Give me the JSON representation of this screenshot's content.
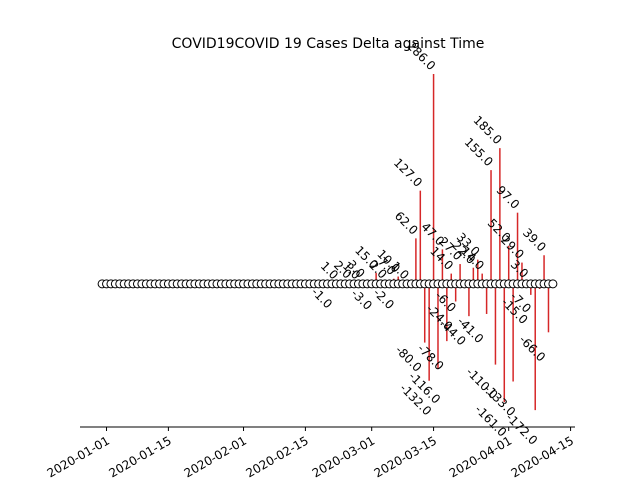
{
  "chart_data": {
    "type": "timeline",
    "title": "COVID19COVID 19 Cases Delta against Time",
    "x": [
      "2019-12-31",
      "2020-01-01",
      "2020-01-02",
      "2020-01-03",
      "2020-01-04",
      "2020-01-05",
      "2020-01-06",
      "2020-01-07",
      "2020-01-08",
      "2020-01-09",
      "2020-01-10",
      "2020-01-11",
      "2020-01-12",
      "2020-01-13",
      "2020-01-14",
      "2020-01-15",
      "2020-01-16",
      "2020-01-17",
      "2020-01-18",
      "2020-01-19",
      "2020-01-20",
      "2020-01-21",
      "2020-01-22",
      "2020-01-23",
      "2020-01-24",
      "2020-01-25",
      "2020-01-26",
      "2020-01-27",
      "2020-01-28",
      "2020-01-29",
      "2020-01-30",
      "2020-01-31",
      "2020-02-01",
      "2020-02-02",
      "2020-02-03",
      "2020-02-04",
      "2020-02-05",
      "2020-02-06",
      "2020-02-07",
      "2020-02-08",
      "2020-02-09",
      "2020-02-10",
      "2020-02-11",
      "2020-02-12",
      "2020-02-13",
      "2020-02-14",
      "2020-02-15",
      "2020-02-16",
      "2020-02-17",
      "2020-02-18",
      "2020-02-19",
      "2020-02-20",
      "2020-02-21",
      "2020-02-22",
      "2020-02-23",
      "2020-02-24",
      "2020-02-25",
      "2020-02-26",
      "2020-02-27",
      "2020-02-28",
      "2020-02-29",
      "2020-03-01",
      "2020-03-02",
      "2020-03-03",
      "2020-03-04",
      "2020-03-05",
      "2020-03-06",
      "2020-03-07",
      "2020-03-08",
      "2020-03-09",
      "2020-03-10",
      "2020-03-11",
      "2020-03-12",
      "2020-03-13",
      "2020-03-14",
      "2020-03-15",
      "2020-03-16",
      "2020-03-17",
      "2020-03-18",
      "2020-03-19",
      "2020-03-20",
      "2020-03-21",
      "2020-03-22",
      "2020-03-23",
      "2020-03-24",
      "2020-03-25",
      "2020-03-26",
      "2020-03-27",
      "2020-03-28",
      "2020-03-29",
      "2020-03-30",
      "2020-03-31",
      "2020-04-01",
      "2020-04-02",
      "2020-04-03",
      "2020-04-04",
      "2020-04-05",
      "2020-04-06",
      "2020-04-07",
      "2020-04-08",
      "2020-04-09",
      "2020-04-10",
      "2020-04-11"
    ],
    "values": [
      0,
      0,
      0,
      0,
      0,
      0,
      0,
      0,
      0,
      0,
      0,
      0,
      0,
      0,
      0,
      0,
      0,
      0,
      0,
      0,
      0,
      0,
      0,
      0,
      0,
      0,
      0,
      0,
      0,
      0,
      0,
      0,
      0,
      0,
      0,
      0,
      0,
      0,
      0,
      0,
      0,
      0,
      0,
      0,
      0,
      0,
      0,
      0,
      0,
      0,
      0,
      0,
      0,
      1,
      -1,
      0,
      2,
      0,
      1,
      3,
      0,
      0,
      15,
      -3,
      2,
      0,
      7,
      10,
      -2,
      1,
      0,
      62,
      127,
      -80,
      -132,
      286,
      -116,
      47,
      -78,
      14,
      -24,
      27,
      -6,
      -44,
      22,
      33,
      14,
      -41,
      155,
      -110,
      185,
      -161,
      52,
      -133,
      97,
      29,
      3,
      -15,
      -172,
      -7,
      39,
      -66,
      0
    ],
    "value_labels": [
      null,
      null,
      null,
      null,
      null,
      null,
      null,
      null,
      null,
      null,
      null,
      null,
      null,
      null,
      null,
      null,
      null,
      null,
      null,
      null,
      null,
      null,
      null,
      null,
      null,
      null,
      null,
      null,
      null,
      null,
      null,
      null,
      null,
      null,
      null,
      null,
      null,
      null,
      null,
      null,
      null,
      null,
      null,
      null,
      null,
      null,
      null,
      null,
      null,
      null,
      null,
      null,
      null,
      "1.0",
      "-1.0",
      null,
      "2.0",
      null,
      "1.0",
      "3.0",
      null,
      null,
      "15.0",
      "-3.0",
      "2.0",
      null,
      "7.0",
      "10.0",
      "-2.0",
      "1.0",
      null,
      "62.0",
      "127.0",
      "-80.0",
      "-132.0",
      "286.0",
      "-116.0",
      "47.0",
      "-78.0",
      "14.0",
      "-24.0",
      "27.0",
      "-6.0",
      "-44.0",
      "22.0",
      "33.0",
      "14.0",
      "-41.0",
      "155.0",
      "-110.0",
      "185.0",
      "-161.0",
      "52.0",
      "-133.0",
      "97.0",
      "29.0",
      "3.0",
      "-15.0",
      "-172.0",
      "-7.0",
      "39.0",
      "-66.0",
      null
    ],
    "color": "#d62728",
    "xlim": [
      "2019-12-26",
      "2020-04-16"
    ],
    "xticks": [
      "2020-01-01",
      "2020-01-15",
      "2020-02-01",
      "2020-02-15",
      "2020-03-01",
      "2020-03-15",
      "2020-04-01",
      "2020-04-15"
    ],
    "ylim": [
      -195,
      320
    ]
  }
}
